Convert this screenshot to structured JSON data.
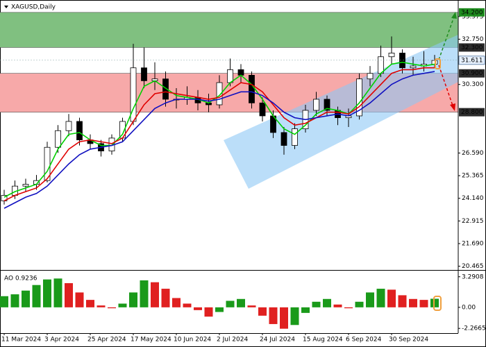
{
  "chart_data": [
    {
      "type": "candlestick",
      "title": "XAGUSD,Daily",
      "categories": [
        "11 Mar 2024",
        null,
        null,
        null,
        "3 Apr 2024",
        null,
        null,
        null,
        "25 Apr 2024",
        null,
        null,
        null,
        "17 May 2024",
        null,
        null,
        null,
        "10 Jun 2024",
        null,
        null,
        null,
        "2 Jul 2024",
        null,
        null,
        null,
        "24 Jul 2024",
        null,
        null,
        null,
        "15 Aug 2024",
        null,
        null,
        null,
        "6 Sep 2024",
        null,
        null,
        null,
        "30 Sep 2024",
        null,
        null,
        null,
        null
      ],
      "open": [
        24.0,
        24.3,
        24.8,
        24.9,
        25.1,
        26.9,
        27.8,
        28.3,
        27.3,
        27.1,
        26.7,
        27.4,
        28.3,
        31.2,
        30.5,
        30.6,
        29.5,
        29.5,
        29.6,
        29.3,
        29.2,
        30.4,
        31.1,
        30.8,
        29.3,
        28.6,
        27.7,
        27.0,
        27.9,
        28.9,
        29.5,
        28.9,
        28.5,
        28.6,
        30.6,
        30.9,
        31.8,
        32.0,
        31.2,
        31.3,
        31.4
      ],
      "high": [
        24.6,
        25.1,
        25.2,
        25.4,
        27.2,
        28.1,
        28.7,
        28.5,
        27.6,
        27.3,
        27.6,
        28.5,
        32.5,
        32.3,
        31.5,
        31.0,
        30.1,
        30.2,
        30.0,
        29.8,
        30.8,
        31.7,
        31.4,
        31.0,
        29.6,
        28.9,
        28.0,
        28.2,
        29.2,
        29.9,
        29.7,
        29.1,
        29.0,
        30.9,
        31.3,
        32.4,
        32.9,
        32.2,
        31.8,
        32.1,
        31.9
      ],
      "low": [
        23.8,
        24.1,
        24.5,
        24.6,
        25.0,
        26.6,
        27.5,
        27.0,
        26.8,
        26.4,
        26.5,
        27.2,
        28.1,
        30.1,
        30.0,
        29.1,
        29.0,
        29.2,
        28.9,
        28.8,
        29.0,
        30.2,
        30.4,
        29.0,
        28.3,
        27.4,
        26.5,
        26.8,
        27.7,
        28.6,
        28.6,
        28.1,
        28.0,
        28.4,
        30.2,
        30.7,
        31.4,
        30.9,
        30.8,
        31.0,
        31.2
      ],
      "close": [
        24.3,
        24.8,
        24.9,
        25.1,
        26.9,
        27.8,
        28.3,
        27.3,
        27.1,
        26.7,
        27.4,
        28.3,
        31.2,
        30.5,
        30.6,
        29.5,
        29.5,
        29.6,
        29.3,
        29.2,
        30.4,
        31.1,
        30.8,
        29.3,
        28.6,
        27.7,
        27.0,
        27.9,
        28.9,
        29.5,
        28.9,
        28.5,
        28.6,
        30.6,
        30.9,
        31.8,
        32.0,
        31.2,
        31.3,
        31.4,
        31.6
      ],
      "up_color": "#ffffff",
      "down_color": "#000000",
      "lines": [
        {
          "color": "#00d000",
          "values": [
            24.2,
            24.5,
            24.7,
            24.9,
            25.6,
            26.8,
            27.6,
            27.7,
            27.3,
            27.0,
            27.0,
            27.6,
            29.0,
            30.2,
            30.5,
            30.1,
            29.7,
            29.6,
            29.5,
            29.3,
            29.7,
            30.4,
            30.8,
            30.3,
            29.5,
            28.6,
            27.9,
            27.6,
            28.1,
            28.7,
            29.0,
            28.9,
            28.7,
            29.3,
            30.1,
            30.9,
            31.4,
            31.5,
            31.4,
            31.3,
            31.4
          ]
        },
        {
          "color": "#e00000",
          "values": [
            24.0,
            24.3,
            24.5,
            24.7,
            25.2,
            26.0,
            26.8,
            27.2,
            27.3,
            27.2,
            27.1,
            27.4,
            28.3,
            29.2,
            29.8,
            29.9,
            29.8,
            29.7,
            29.6,
            29.5,
            29.6,
            30.0,
            30.4,
            30.3,
            29.9,
            29.2,
            28.5,
            28.1,
            28.2,
            28.5,
            28.8,
            28.8,
            28.7,
            29.1,
            29.7,
            30.3,
            30.9,
            31.1,
            31.1,
            31.2,
            31.2
          ]
        },
        {
          "color": "#1010c0",
          "values": [
            23.6,
            23.9,
            24.2,
            24.4,
            24.8,
            25.4,
            26.0,
            26.5,
            26.8,
            26.9,
            27.0,
            27.2,
            27.8,
            28.4,
            29.0,
            29.3,
            29.5,
            29.5,
            29.5,
            29.4,
            29.5,
            29.7,
            29.9,
            29.9,
            29.7,
            29.3,
            28.8,
            28.5,
            28.4,
            28.5,
            28.6,
            28.7,
            28.6,
            28.9,
            29.3,
            29.8,
            30.3,
            30.6,
            30.8,
            30.9,
            31.0
          ]
        }
      ],
      "ylim": [
        20.3,
        34.87
      ],
      "yticks": [
        33.975,
        {
          "value": 32.75,
          "label": "32.750"
        },
        {
          "value": 30.3,
          "label": "30.300"
        },
        {
          "value": 26.59,
          "label": "26.590"
        },
        25.365,
        {
          "value": 24.14,
          "label": "24.140"
        },
        22.915,
        {
          "value": 21.69,
          "label": "21.690"
        },
        20.465
      ],
      "levels": [
        {
          "value": 34.2,
          "label": "34.200",
          "color": "#1e8c1e"
        },
        {
          "value": 32.3,
          "label": "32.300",
          "color": "#2b2b2b"
        },
        {
          "value": 30.9,
          "label": "30.900",
          "color": "#2b2b2b"
        },
        {
          "value": 28.8,
          "label": "28.800",
          "color": "#2b2b2b"
        }
      ],
      "zone_colors": [
        "#80c080",
        null,
        "#f7a9a9"
      ],
      "last_price": 31.611
    },
    {
      "type": "bar",
      "title": "AO 0.9236",
      "values": [
        1.2,
        1.4,
        1.8,
        2.4,
        3.0,
        3.1,
        2.6,
        1.6,
        0.8,
        0.2,
        -0.1,
        0.4,
        1.6,
        2.9,
        2.7,
        2.0,
        1.0,
        0.4,
        -0.3,
        -1.0,
        -0.5,
        0.7,
        0.9,
        0.2,
        -0.9,
        -1.8,
        -2.3,
        -1.9,
        -0.6,
        0.6,
        0.9,
        0.3,
        -0.1,
        0.6,
        1.6,
        2.0,
        1.9,
        1.3,
        0.9,
        0.8,
        0.9236
      ],
      "up_color": "#1a9a1a",
      "down_color": "#e02020",
      "ylim": [
        -2.7,
        3.87
      ],
      "yticks": [
        3.2908,
        {
          "value": 0,
          "label": "0.00"
        },
        -2.2665
      ]
    }
  ]
}
